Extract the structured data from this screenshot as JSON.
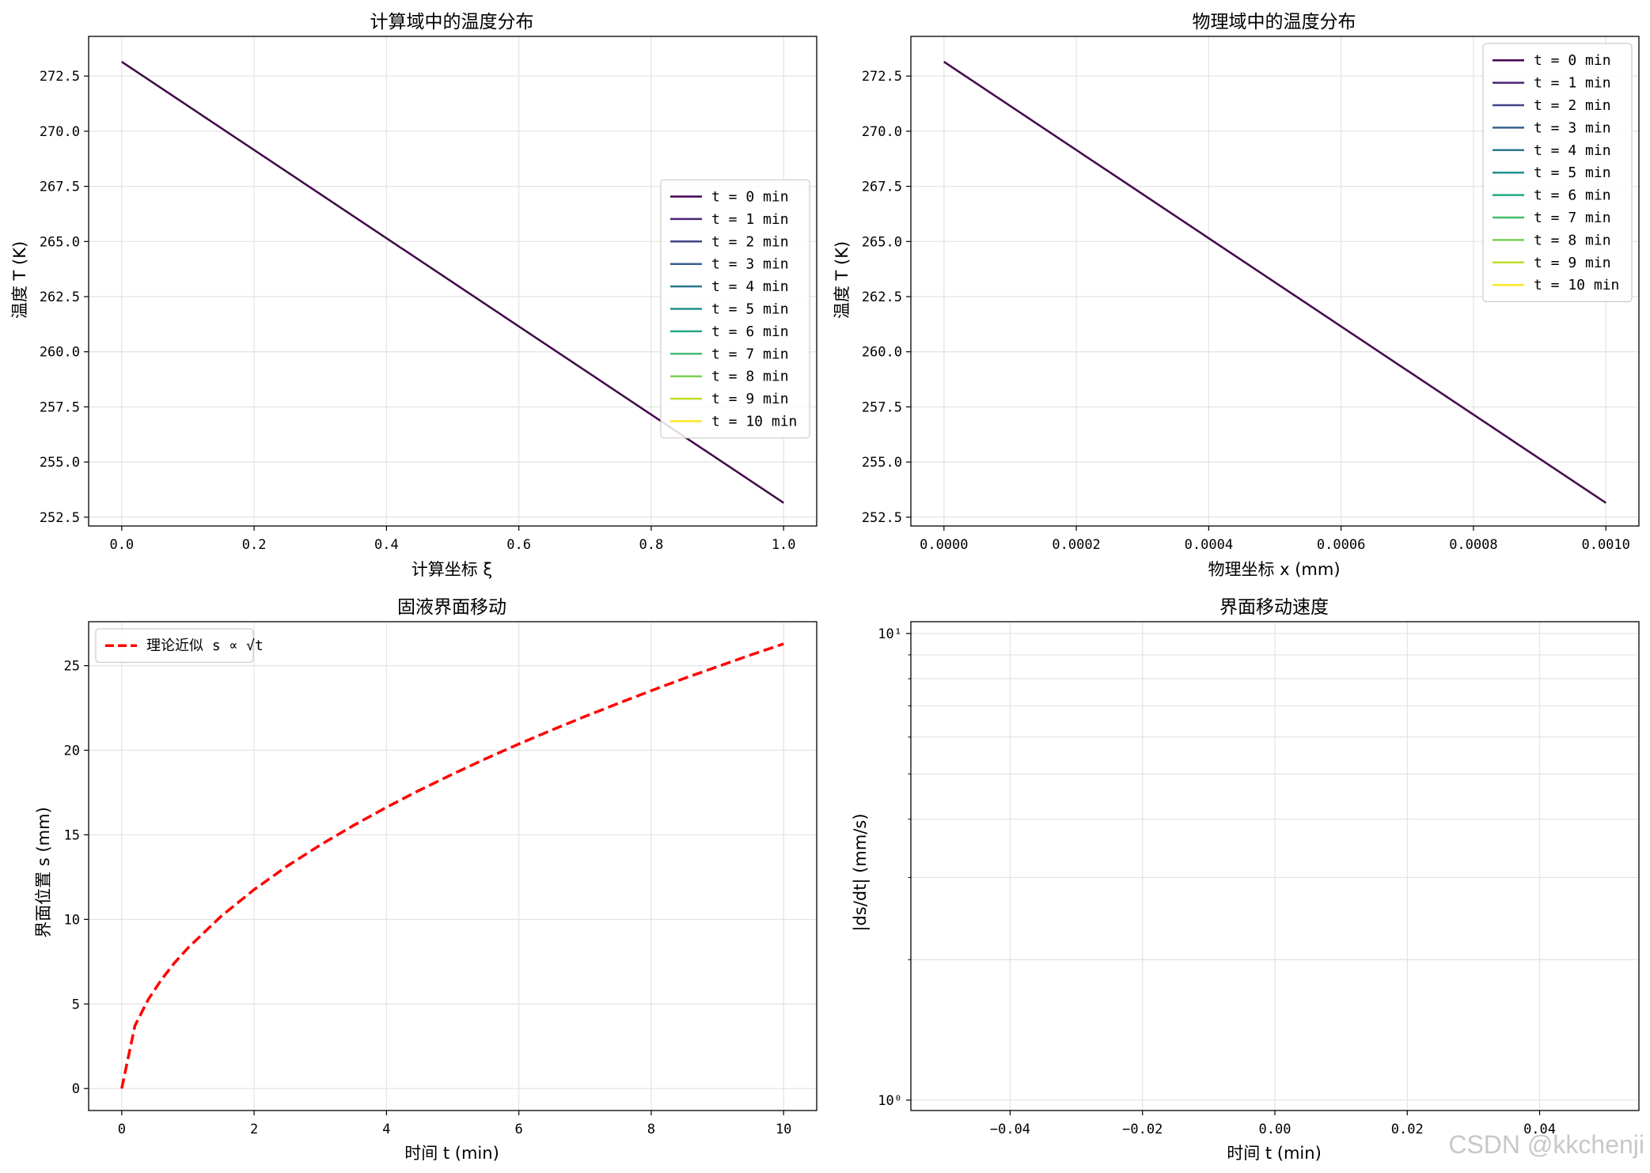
{
  "watermark": "CSDN @kkchenji",
  "chart_data": [
    {
      "type": "line",
      "title": "计算域中的温度分布",
      "xlabel": "计算坐标 ξ",
      "ylabel": "温度 T (K)",
      "xlim": [
        -0.05,
        1.05
      ],
      "ylim": [
        252.1,
        274.3
      ],
      "xticks": [
        0.0,
        0.2,
        0.4,
        0.6,
        0.8,
        1.0
      ],
      "xtick_labels": [
        "0.0",
        "0.2",
        "0.4",
        "0.6",
        "0.8",
        "1.0"
      ],
      "yticks": [
        252.5,
        255.0,
        257.5,
        260.0,
        262.5,
        265.0,
        267.5,
        270.0,
        272.5
      ],
      "ytick_labels": [
        "252.5",
        "255.0",
        "257.5",
        "260.0",
        "262.5",
        "265.0",
        "267.5",
        "270.0",
        "272.5"
      ],
      "grid": true,
      "legend": "center-right",
      "series": [
        {
          "name": "t = 0 min",
          "color": "#440154",
          "x": [
            0.0,
            1.0
          ],
          "y": [
            273.15,
            253.15
          ]
        },
        {
          "name": "t = 1 min",
          "color": "#482475",
          "x": [
            0.0,
            1.0
          ],
          "y": [
            273.15,
            253.15
          ]
        },
        {
          "name": "t = 2 min",
          "color": "#414487",
          "x": [
            0.0,
            1.0
          ],
          "y": [
            273.15,
            253.15
          ]
        },
        {
          "name": "t = 3 min",
          "color": "#355f8d",
          "x": [
            0.0,
            1.0
          ],
          "y": [
            273.15,
            253.15
          ]
        },
        {
          "name": "t = 4 min",
          "color": "#2a788e",
          "x": [
            0.0,
            1.0
          ],
          "y": [
            273.15,
            253.15
          ]
        },
        {
          "name": "t = 5 min",
          "color": "#21918c",
          "x": [
            0.0,
            1.0
          ],
          "y": [
            273.15,
            253.15
          ]
        },
        {
          "name": "t = 6 min",
          "color": "#22a884",
          "x": [
            0.0,
            1.0
          ],
          "y": [
            273.15,
            253.15
          ]
        },
        {
          "name": "t = 7 min",
          "color": "#44bf70",
          "x": [
            0.0,
            1.0
          ],
          "y": [
            273.15,
            253.15
          ]
        },
        {
          "name": "t = 8 min",
          "color": "#7ad151",
          "x": [
            0.0,
            1.0
          ],
          "y": [
            273.15,
            253.15
          ]
        },
        {
          "name": "t = 9 min",
          "color": "#bddf26",
          "x": [
            0.0,
            1.0
          ],
          "y": [
            273.15,
            253.15
          ]
        },
        {
          "name": "t = 10 min",
          "color": "#fde725",
          "x": [
            0.0,
            1.0
          ],
          "y": [
            273.15,
            253.15
          ]
        }
      ]
    },
    {
      "type": "line",
      "title": "物理域中的温度分布",
      "xlabel": "物理坐标 x (mm)",
      "ylabel": "温度 T (K)",
      "xlim": [
        -5e-05,
        0.00105
      ],
      "ylim": [
        252.1,
        274.3
      ],
      "xticks": [
        0.0,
        0.0002,
        0.0004,
        0.0006,
        0.0008,
        0.001
      ],
      "xtick_labels": [
        "0.0000",
        "0.0002",
        "0.0004",
        "0.0006",
        "0.0008",
        "0.0010"
      ],
      "yticks": [
        252.5,
        255.0,
        257.5,
        260.0,
        262.5,
        265.0,
        267.5,
        270.0,
        272.5
      ],
      "ytick_labels": [
        "252.5",
        "255.0",
        "257.5",
        "260.0",
        "262.5",
        "265.0",
        "267.5",
        "270.0",
        "272.5"
      ],
      "grid": true,
      "legend": "top-right",
      "series": [
        {
          "name": "t = 0 min",
          "color": "#440154",
          "x": [
            0.0,
            0.001
          ],
          "y": [
            273.15,
            253.15
          ]
        },
        {
          "name": "t = 1 min",
          "color": "#482475",
          "x": [
            0.0,
            0.001
          ],
          "y": [
            273.15,
            253.15
          ]
        },
        {
          "name": "t = 2 min",
          "color": "#414487",
          "x": [
            0.0,
            0.001
          ],
          "y": [
            273.15,
            253.15
          ]
        },
        {
          "name": "t = 3 min",
          "color": "#355f8d",
          "x": [
            0.0,
            0.001
          ],
          "y": [
            273.15,
            253.15
          ]
        },
        {
          "name": "t = 4 min",
          "color": "#2a788e",
          "x": [
            0.0,
            0.001
          ],
          "y": [
            273.15,
            253.15
          ]
        },
        {
          "name": "t = 5 min",
          "color": "#21918c",
          "x": [
            0.0,
            0.001
          ],
          "y": [
            273.15,
            253.15
          ]
        },
        {
          "name": "t = 6 min",
          "color": "#22a884",
          "x": [
            0.0,
            0.001
          ],
          "y": [
            273.15,
            253.15
          ]
        },
        {
          "name": "t = 7 min",
          "color": "#44bf70",
          "x": [
            0.0,
            0.001
          ],
          "y": [
            273.15,
            253.15
          ]
        },
        {
          "name": "t = 8 min",
          "color": "#7ad151",
          "x": [
            0.0,
            0.001
          ],
          "y": [
            273.15,
            253.15
          ]
        },
        {
          "name": "t = 9 min",
          "color": "#bddf26",
          "x": [
            0.0,
            0.001
          ],
          "y": [
            273.15,
            253.15
          ]
        },
        {
          "name": "t = 10 min",
          "color": "#fde725",
          "x": [
            0.0,
            0.001
          ],
          "y": [
            273.15,
            253.15
          ]
        }
      ]
    },
    {
      "type": "line",
      "title": "固液界面移动",
      "xlabel": "时间 t (min)",
      "ylabel": "界面位置 s (mm)",
      "xlim": [
        -0.5,
        10.5
      ],
      "ylim": [
        -1.3,
        27.6
      ],
      "xticks": [
        0,
        2,
        4,
        6,
        8,
        10
      ],
      "xtick_labels": [
        "0",
        "2",
        "4",
        "6",
        "8",
        "10"
      ],
      "yticks": [
        0,
        5,
        10,
        15,
        20,
        25
      ],
      "ytick_labels": [
        "0",
        "5",
        "10",
        "15",
        "20",
        "25"
      ],
      "grid": true,
      "legend": "top-left",
      "series": [
        {
          "name": "理论近似 s ∝ √t",
          "color": "#ff0000",
          "dash": true,
          "x": [
            0,
            0.2,
            0.4,
            0.6,
            0.8,
            1,
            1.5,
            2,
            2.5,
            3,
            3.5,
            4,
            4.5,
            5,
            5.5,
            6,
            6.5,
            7,
            7.5,
            8,
            8.5,
            9,
            9.5,
            10
          ],
          "y": [
            0,
            3.72,
            5.26,
            6.44,
            7.44,
            8.31,
            10.18,
            11.76,
            13.15,
            14.4,
            15.55,
            16.63,
            17.64,
            18.59,
            19.5,
            20.37,
            21.2,
            22.0,
            22.77,
            23.52,
            24.25,
            24.94,
            25.63,
            26.29
          ]
        }
      ]
    },
    {
      "type": "line",
      "title": "界面移动速度",
      "xlabel": "时间 t (min)",
      "ylabel": "|ds/dt| (mm/s)",
      "yscale": "log",
      "xlim": [
        -0.055,
        0.055
      ],
      "ylim": [
        0.95,
        10.6
      ],
      "xticks": [
        -0.04,
        -0.02,
        0.0,
        0.02,
        0.04
      ],
      "xtick_labels": [
        "−0.04",
        "−0.02",
        "0.00",
        "0.02",
        "0.04"
      ],
      "yticks": [
        1,
        10
      ],
      "ytick_labels": [
        "10⁰",
        "10¹"
      ],
      "grid": true,
      "series": []
    }
  ]
}
